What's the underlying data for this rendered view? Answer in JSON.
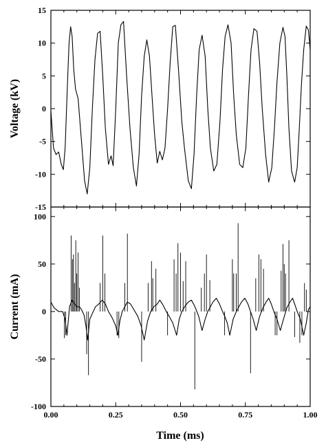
{
  "chart_data": [
    {
      "type": "line",
      "ylabel": "Voltage (kV)",
      "xlim": [
        0,
        1
      ],
      "ylim": [
        -15,
        15
      ],
      "yticks": [
        15,
        10,
        5,
        0,
        -5,
        -10,
        -15
      ],
      "series": [
        {
          "x": [
            0.0,
            0.01,
            0.02,
            0.03,
            0.04,
            0.048,
            0.055,
            0.063,
            0.07,
            0.076,
            0.082,
            0.088,
            0.095,
            0.105,
            0.118,
            0.13,
            0.14,
            0.15,
            0.16,
            0.17,
            0.18,
            0.19,
            0.2,
            0.21,
            0.222,
            0.232,
            0.24,
            0.25,
            0.26,
            0.27,
            0.28,
            0.292,
            0.305,
            0.318,
            0.33,
            0.34,
            0.35,
            0.36,
            0.37,
            0.38,
            0.39,
            0.4,
            0.41,
            0.42,
            0.43,
            0.44,
            0.45,
            0.46,
            0.47,
            0.48,
            0.492,
            0.505,
            0.515,
            0.53,
            0.542,
            0.552,
            0.562,
            0.572,
            0.583,
            0.595,
            0.605,
            0.615,
            0.628,
            0.64,
            0.652,
            0.662,
            0.672,
            0.683,
            0.695,
            0.705,
            0.715,
            0.728,
            0.74,
            0.752,
            0.762,
            0.772,
            0.783,
            0.795,
            0.805,
            0.815,
            0.828,
            0.84,
            0.852,
            0.862,
            0.872,
            0.883,
            0.895,
            0.903,
            0.91,
            0.918,
            0.928,
            0.94,
            0.95,
            0.958,
            0.966,
            0.975,
            0.985,
            0.993,
            1.0
          ],
          "y": [
            -0.3,
            -6.0,
            -7.0,
            -6.6,
            -8.5,
            -9.3,
            -6.0,
            3.0,
            10.0,
            12.5,
            11.0,
            6.0,
            3.0,
            1.5,
            -5.0,
            -11.0,
            -13.0,
            -9.0,
            0.0,
            7.5,
            11.5,
            11.8,
            5.0,
            -3.0,
            -8.5,
            -7.2,
            -8.7,
            0.0,
            10.0,
            12.8,
            13.3,
            5.0,
            -3.0,
            -9.0,
            -11.8,
            -7.0,
            2.0,
            8.0,
            10.5,
            8.0,
            2.0,
            -4.0,
            -8.3,
            -6.5,
            -7.8,
            -6.0,
            0.0,
            7.0,
            12.5,
            12.7,
            6.0,
            -2.0,
            -6.0,
            -11.0,
            -12.2,
            -7.0,
            2.0,
            9.0,
            11.2,
            8.0,
            0.0,
            -6.0,
            -9.5,
            -8.5,
            -2.0,
            6.0,
            11.0,
            12.8,
            10.0,
            2.0,
            -4.0,
            -8.5,
            -9.0,
            -6.0,
            2.0,
            9.0,
            12.2,
            11.8,
            7.0,
            0.0,
            -7.0,
            -11.2,
            -9.0,
            -3.0,
            4.0,
            10.0,
            12.4,
            11.0,
            5.0,
            -3.0,
            -9.5,
            -11.2,
            -9.0,
            -3.0,
            3.5,
            9.0,
            12.6,
            12.0,
            9.0
          ]
        }
      ]
    },
    {
      "type": "line",
      "xlabel": "Time (ms)",
      "ylabel": "Current (mA)",
      "xlim": [
        0,
        1
      ],
      "ylim": [
        -100,
        110
      ],
      "xticks": [
        "0.00",
        "0.25",
        "0.50",
        "0.75",
        "1.00"
      ],
      "yticks": [
        100,
        50,
        0,
        -50,
        -100
      ],
      "series": [
        {
          "x": [
            0.0,
            0.012,
            0.03,
            0.045,
            0.055,
            0.062,
            0.072,
            0.082,
            0.092,
            0.1,
            0.11,
            0.118,
            0.128,
            0.135,
            0.142,
            0.15,
            0.16,
            0.172,
            0.185,
            0.198,
            0.21,
            0.222,
            0.235,
            0.25,
            0.258,
            0.266,
            0.275,
            0.285,
            0.295,
            0.307,
            0.32,
            0.335,
            0.348,
            0.36,
            0.373,
            0.385,
            0.397,
            0.41,
            0.42,
            0.43,
            0.445,
            0.458,
            0.47,
            0.485,
            0.495,
            0.505,
            0.518,
            0.53,
            0.542,
            0.552,
            0.56,
            0.57,
            0.583,
            0.595,
            0.605,
            0.615,
            0.625,
            0.638,
            0.65,
            0.662,
            0.672,
            0.68,
            0.69,
            0.703,
            0.715,
            0.725,
            0.735,
            0.748,
            0.76,
            0.77,
            0.78,
            0.792,
            0.805,
            0.818,
            0.83,
            0.84,
            0.85,
            0.86,
            0.872,
            0.885,
            0.897,
            0.91,
            0.922,
            0.932,
            0.94,
            0.95,
            0.962,
            0.975,
            0.985,
            0.993,
            1.0
          ],
          "y": [
            10,
            4,
            0,
            0,
            -8,
            -25,
            5,
            12,
            8,
            5,
            5,
            2,
            -4,
            -15,
            -30,
            -8,
            -2,
            5,
            8,
            12,
            8,
            0,
            -6,
            -15,
            -25,
            -10,
            0,
            5,
            10,
            8,
            2,
            -5,
            -15,
            -30,
            -10,
            0,
            5,
            8,
            12,
            8,
            0,
            -6,
            -12,
            -25,
            -8,
            0,
            6,
            10,
            12,
            7,
            2,
            -5,
            -20,
            -8,
            0,
            5,
            10,
            14,
            8,
            0,
            -6,
            -12,
            -25,
            -8,
            0,
            5,
            10,
            14,
            8,
            0,
            -8,
            -20,
            -5,
            4,
            10,
            14,
            8,
            0,
            -8,
            -20,
            -8,
            4,
            10,
            14,
            8,
            0,
            -8,
            -25,
            -12,
            2,
            5
          ],
          "spikes": [
            [
              0.052,
              -28
            ],
            [
              0.057,
              -25
            ],
            [
              0.078,
              80
            ],
            [
              0.083,
              55
            ],
            [
              0.087,
              60
            ],
            [
              0.091,
              30
            ],
            [
              0.096,
              75
            ],
            [
              0.1,
              40
            ],
            [
              0.105,
              62
            ],
            [
              0.11,
              25
            ],
            [
              0.138,
              -45
            ],
            [
              0.145,
              -67
            ],
            [
              0.19,
              30
            ],
            [
              0.2,
              80
            ],
            [
              0.208,
              40
            ],
            [
              0.255,
              -25
            ],
            [
              0.262,
              -28
            ],
            [
              0.285,
              30
            ],
            [
              0.295,
              82
            ],
            [
              0.35,
              -53
            ],
            [
              0.375,
              30
            ],
            [
              0.388,
              53
            ],
            [
              0.393,
              35
            ],
            [
              0.405,
              45
            ],
            [
              0.45,
              -25
            ],
            [
              0.475,
              55
            ],
            [
              0.483,
              40
            ],
            [
              0.49,
              72
            ],
            [
              0.5,
              62
            ],
            [
              0.51,
              32
            ],
            [
              0.52,
              53
            ],
            [
              0.555,
              -82
            ],
            [
              0.58,
              25
            ],
            [
              0.592,
              40
            ],
            [
              0.6,
              60
            ],
            [
              0.613,
              33
            ],
            [
              0.67,
              -25
            ],
            [
              0.7,
              55
            ],
            [
              0.705,
              40
            ],
            [
              0.715,
              40
            ],
            [
              0.722,
              93
            ],
            [
              0.77,
              -65
            ],
            [
              0.79,
              35
            ],
            [
              0.802,
              60
            ],
            [
              0.81,
              55
            ],
            [
              0.82,
              45
            ],
            [
              0.865,
              -25
            ],
            [
              0.872,
              -25
            ],
            [
              0.888,
              43
            ],
            [
              0.895,
              71
            ],
            [
              0.9,
              50
            ],
            [
              0.905,
              40
            ],
            [
              0.918,
              75
            ],
            [
              0.94,
              -27
            ],
            [
              0.96,
              -33
            ],
            [
              0.968,
              -25
            ],
            [
              0.978,
              30
            ],
            [
              0.985,
              23
            ]
          ]
        }
      ]
    }
  ]
}
